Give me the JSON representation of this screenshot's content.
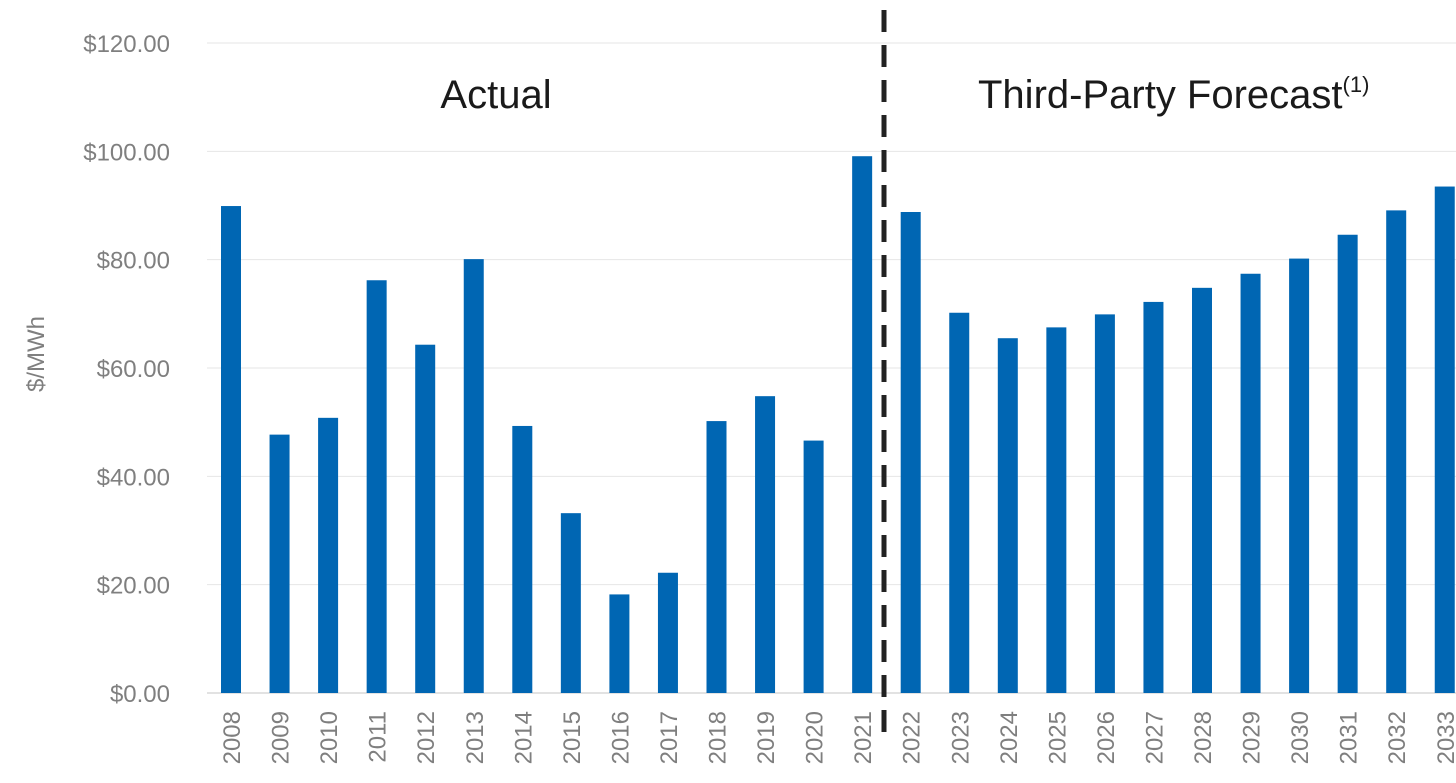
{
  "chart_data": {
    "type": "bar",
    "ylabel": "$/MWh",
    "ylim": [
      0,
      120
    ],
    "y_ticks": [
      "$0.00",
      "$20.00",
      "$40.00",
      "$60.00",
      "$80.00",
      "$100.00",
      "$120.00"
    ],
    "y_tick_values": [
      0,
      20,
      40,
      60,
      80,
      100,
      120
    ],
    "grid": true,
    "categories": [
      "2008",
      "2009",
      "2010",
      "2011",
      "2012",
      "2013",
      "2014",
      "2015",
      "2016",
      "2017",
      "2018",
      "2019",
      "2020",
      "2021",
      "2022",
      "2023",
      "2024",
      "2025",
      "2026",
      "2027",
      "2028",
      "2029",
      "2030",
      "2031",
      "2032",
      "2033"
    ],
    "values": [
      89.9,
      47.7,
      50.8,
      76.2,
      64.3,
      80.1,
      49.3,
      33.2,
      18.2,
      22.2,
      50.2,
      54.8,
      46.6,
      99.1,
      88.8,
      70.2,
      65.5,
      67.5,
      69.9,
      72.2,
      74.8,
      77.4,
      80.2,
      84.6,
      89.1,
      93.5
    ],
    "bar_color": "#0066b3",
    "divider": {
      "after_category": "2021",
      "style": "dashed",
      "color": "#222222"
    },
    "annotations": {
      "actual": "Actual",
      "forecast": "Third-Party Forecast",
      "forecast_footnote": "(1)"
    }
  }
}
